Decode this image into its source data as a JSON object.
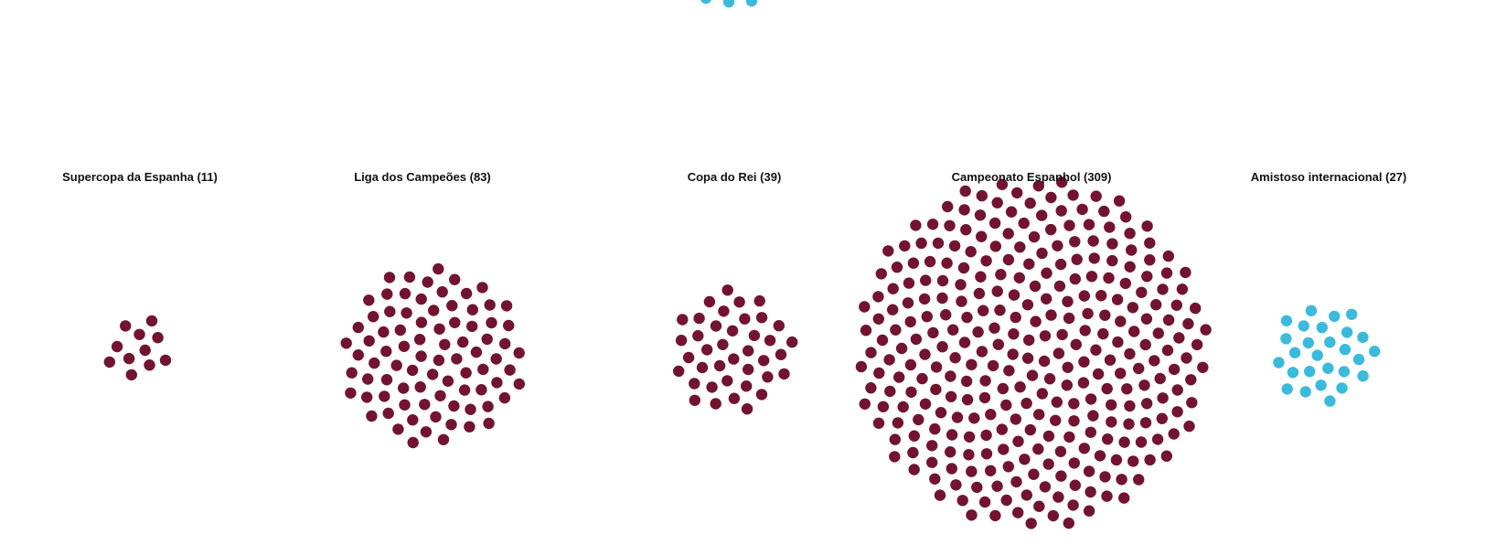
{
  "chart_data": {
    "type": "scatter",
    "description_free": true,
    "colors": {
      "club": "#721430",
      "national": "#3bbbdc"
    },
    "clusters": [
      {
        "label": "Supercopa da Espanha",
        "count": 11,
        "title": "Supercopa da Espanha (11)",
        "color_key": "club"
      },
      {
        "label": "Liga dos Campeões",
        "count": 83,
        "title": "Liga dos Campeões (83)",
        "color_key": "club"
      },
      {
        "label": "Copa do Rei",
        "count": 39,
        "title": "Copa do Rei (39)",
        "color_key": "club"
      },
      {
        "label": "Campeonato Espanhol",
        "count": 309,
        "title": "Campeonato Espanhol (309)",
        "color_key": "club"
      },
      {
        "label": "Amistoso internacional",
        "count": 27,
        "title": "Amistoso internacional (27)",
        "color_key": "national"
      }
    ],
    "partial_cluster": {
      "visible_dots": 3,
      "color_key": "national"
    }
  }
}
